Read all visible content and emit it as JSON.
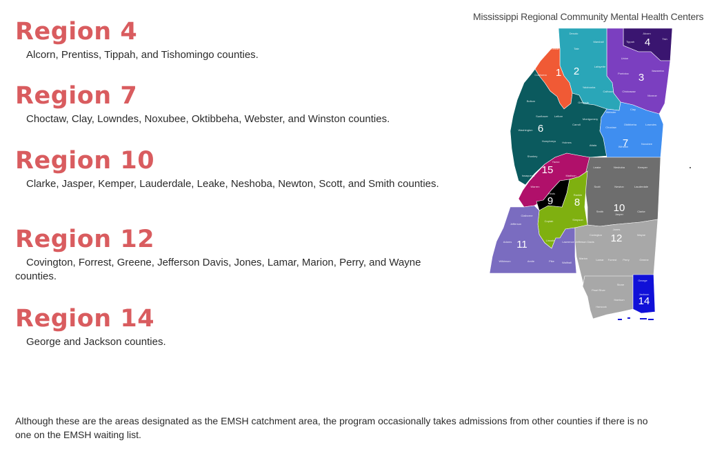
{
  "regions": [
    {
      "title": "Region 4",
      "counties": "Alcorn, Prentiss, Tippah, and Tishomingo counties."
    },
    {
      "title": "Region 7",
      "counties": "Choctaw, Clay, Lowndes, Noxubee, Oktibbeha, Webster, and Winston counties."
    },
    {
      "title": "Region 10",
      "counties": "Clarke, Jasper, Kemper, Lauderdale, Leake, Neshoba, Newton, Scott, and Smith counties."
    },
    {
      "title": "Region 12",
      "counties": "Covington, Forrest, Greene, Jefferson Davis, Jones, Lamar, Marion, Perry, and Wayne counties."
    },
    {
      "title": "Region 14",
      "counties": "George and Jackson counties."
    }
  ],
  "footer": "Although these are the areas designated as the EMSH catchment area, the program occasionally takes admissions from other counties if there is no one on the EMSH waiting list.",
  "map": {
    "title": "Mississippi Regional Community Mental Health Centers",
    "region_labels": [
      "1",
      "2",
      "3",
      "4",
      "6",
      "7",
      "8",
      "9",
      "10",
      "11",
      "12",
      "14",
      "15"
    ],
    "colors": {
      "region_1": "#f05a35",
      "region_2": "#2aa6b8",
      "region_3": "#7b3fc0",
      "region_4": "#3a1570",
      "region_6": "#0b5a5e",
      "region_7": "#3f8ef0",
      "region_8": "#7fb010",
      "region_9": "#000000",
      "region_10": "#6e6e6e",
      "region_11": "#7a6cc0",
      "region_12": "#a8a8a8",
      "region_14": "#1010d8",
      "region_15": "#b0106a",
      "heading": "#d95c5f"
    }
  }
}
